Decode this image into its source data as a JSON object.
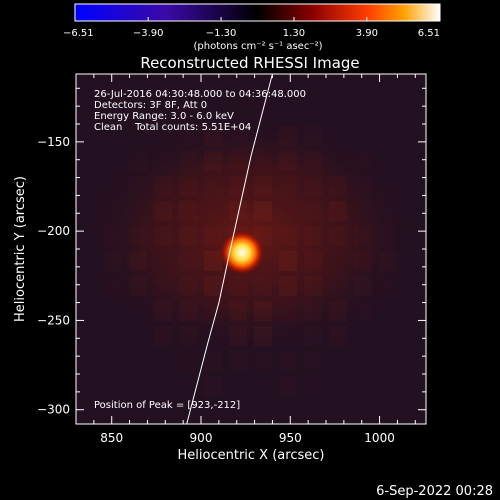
{
  "chart_data": {
    "type": "heatmap",
    "title": "Reconstructed RHESSI Image",
    "xlabel": "Heliocentric X (arcsec)",
    "ylabel": "Heliocentric Y (arcsec)",
    "xlim": [
      830,
      1026
    ],
    "ylim": [
      -308,
      -112
    ],
    "x_ticks": [
      850,
      900,
      950,
      1000
    ],
    "y_ticks": [
      -150,
      -200,
      -250,
      -300
    ],
    "x_tick_labels": [
      "850",
      "900",
      "950",
      "1000"
    ],
    "y_tick_labels": [
      "−150",
      "−200",
      "−250",
      "−300"
    ],
    "colorbar": {
      "min": -6.51,
      "max": 6.51,
      "ticks": [
        -6.51,
        -3.9,
        -1.3,
        1.3,
        3.9,
        6.51
      ],
      "tick_labels": [
        "−6.51",
        "−3.90",
        "−1.30",
        "1.30",
        "3.90",
        "6.51"
      ],
      "units": "(photons cm⁻² s⁻¹ asec⁻²)",
      "colormap": "blue-purple-red-yellow-white"
    },
    "annotations": [
      "26-Jul-2016 04:30:48.000 to 04:36:48.000",
      "Detectors: 3F 8F, Att 0",
      "Energy Range: 3.0 - 6.0 keV",
      "Clean    Total counts: 5.51E+04"
    ],
    "peak_label": "Position of Peak = [923,-212]",
    "peak": {
      "x": 923,
      "y": -212,
      "value": 6.51
    },
    "limb_curve": [
      [
        892,
        -308
      ],
      [
        898,
        -285
      ],
      [
        904,
        -262
      ],
      [
        910,
        -240
      ],
      [
        916,
        -212
      ],
      [
        922,
        -185
      ],
      [
        928,
        -158
      ],
      [
        934,
        -135
      ],
      [
        940,
        -112
      ]
    ],
    "footer": "6-Sep-2022 00:28",
    "grid": false
  }
}
